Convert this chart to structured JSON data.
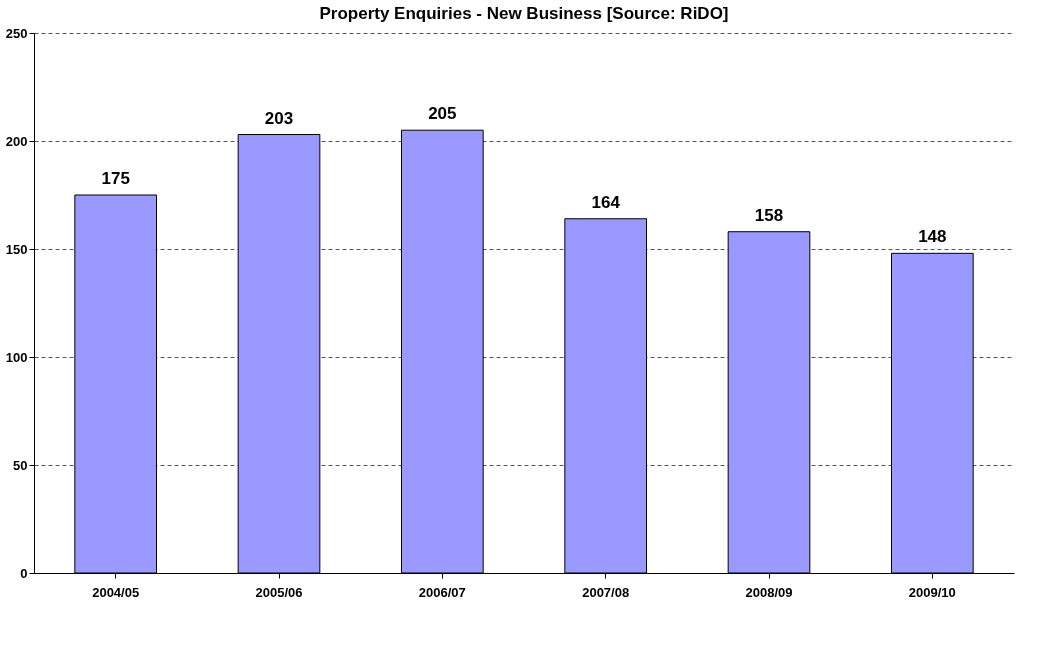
{
  "chart_data": {
    "type": "bar",
    "title": "Property Enquiries - New Business [Source: RiDO]",
    "categories": [
      "2004/05",
      "2005/06",
      "2006/07",
      "2007/08",
      "2008/09",
      "2009/10"
    ],
    "values": [
      175,
      203,
      205,
      164,
      158,
      148
    ],
    "color": "#9999ff",
    "ylim": [
      0,
      250
    ],
    "yticks": [
      0,
      50,
      100,
      150,
      200,
      250
    ],
    "grid": "y",
    "data_labels": true
  }
}
